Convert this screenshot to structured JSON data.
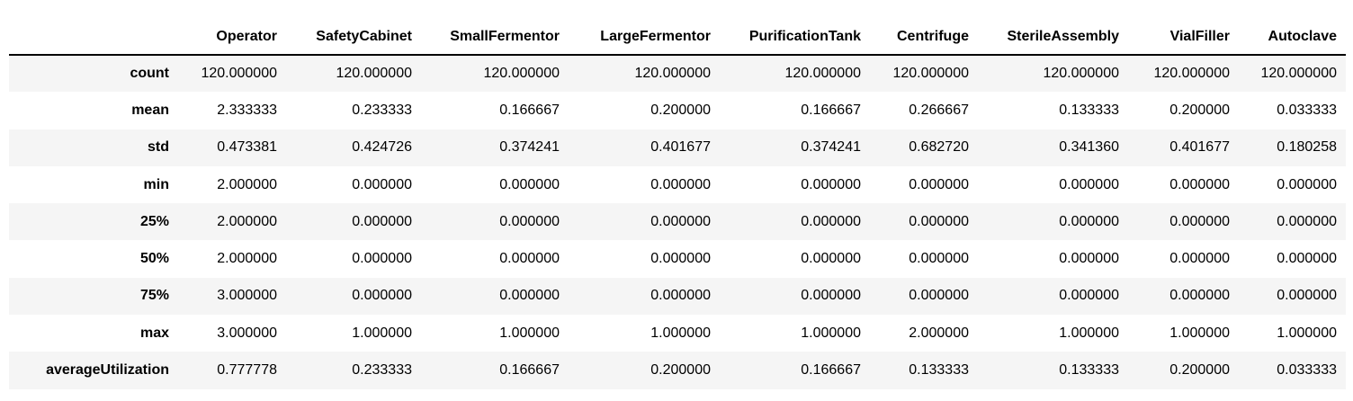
{
  "table": {
    "columns": [
      "Operator",
      "SafetyCabinet",
      "SmallFermentor",
      "LargeFermentor",
      "PurificationTank",
      "Centrifuge",
      "SterileAssembly",
      "VialFiller",
      "Autoclave"
    ],
    "rows": [
      {
        "index": "count",
        "values": [
          "120.000000",
          "120.000000",
          "120.000000",
          "120.000000",
          "120.000000",
          "120.000000",
          "120.000000",
          "120.000000",
          "120.000000"
        ]
      },
      {
        "index": "mean",
        "values": [
          "2.333333",
          "0.233333",
          "0.166667",
          "0.200000",
          "0.166667",
          "0.266667",
          "0.133333",
          "0.200000",
          "0.033333"
        ]
      },
      {
        "index": "std",
        "values": [
          "0.473381",
          "0.424726",
          "0.374241",
          "0.401677",
          "0.374241",
          "0.682720",
          "0.341360",
          "0.401677",
          "0.180258"
        ]
      },
      {
        "index": "min",
        "values": [
          "2.000000",
          "0.000000",
          "0.000000",
          "0.000000",
          "0.000000",
          "0.000000",
          "0.000000",
          "0.000000",
          "0.000000"
        ]
      },
      {
        "index": "25%",
        "values": [
          "2.000000",
          "0.000000",
          "0.000000",
          "0.000000",
          "0.000000",
          "0.000000",
          "0.000000",
          "0.000000",
          "0.000000"
        ]
      },
      {
        "index": "50%",
        "values": [
          "2.000000",
          "0.000000",
          "0.000000",
          "0.000000",
          "0.000000",
          "0.000000",
          "0.000000",
          "0.000000",
          "0.000000"
        ]
      },
      {
        "index": "75%",
        "values": [
          "3.000000",
          "0.000000",
          "0.000000",
          "0.000000",
          "0.000000",
          "0.000000",
          "0.000000",
          "0.000000",
          "0.000000"
        ]
      },
      {
        "index": "max",
        "values": [
          "3.000000",
          "1.000000",
          "1.000000",
          "1.000000",
          "1.000000",
          "2.000000",
          "1.000000",
          "1.000000",
          "1.000000"
        ]
      },
      {
        "index": "averageUtilization",
        "values": [
          "0.777778",
          "0.233333",
          "0.166667",
          "0.200000",
          "0.166667",
          "0.133333",
          "0.133333",
          "0.200000",
          "0.033333"
        ]
      }
    ]
  }
}
